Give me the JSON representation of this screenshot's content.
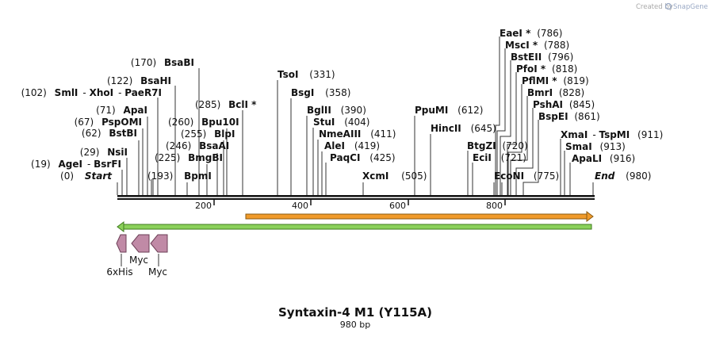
{
  "header": {
    "credit_text": "Created by",
    "credit_brand": "SnapGene"
  },
  "map": {
    "title": "Syntaxin-4 M1 (Y115A)",
    "subtitle": "980 bp",
    "length": 980,
    "ticks": [
      "200",
      "400",
      "600",
      "800"
    ]
  },
  "enzymes": [
    {
      "label": "EaeI *",
      "pos": "(786)"
    },
    {
      "label": "MscI *",
      "pos": "(788)"
    },
    {
      "label": "BstEII",
      "pos": "(796)"
    },
    {
      "label": "PfoI *",
      "pos": "(818)"
    },
    {
      "label": "PflMI *",
      "pos": "(819)"
    },
    {
      "label": "BmrI",
      "pos": "(828)"
    },
    {
      "label": "PshAI",
      "pos": "(845)"
    },
    {
      "label": "BspEI",
      "pos": "(861)"
    },
    {
      "label": "XmaI",
      "pos": "(911)",
      "alias": "TspMI"
    },
    {
      "label": "SmaI",
      "pos": "(913)"
    },
    {
      "label": "ApaLI",
      "pos": "(916)"
    },
    {
      "label": "End",
      "pos": "(980)"
    },
    {
      "label": "PpuMI",
      "pos": "(612)"
    },
    {
      "label": "HincII",
      "pos": "(645)"
    },
    {
      "label": "BtgZI",
      "pos": "(720)"
    },
    {
      "label": "EciI",
      "pos": "(721)"
    },
    {
      "label": "EcoNI",
      "pos": "(775)"
    },
    {
      "label": "TsoI",
      "pos": "(331)"
    },
    {
      "label": "BsgI",
      "pos": "(358)"
    },
    {
      "label": "BglII",
      "pos": "(390)"
    },
    {
      "label": "StuI",
      "pos": "(404)"
    },
    {
      "label": "NmeAIII",
      "pos": "(411)"
    },
    {
      "label": "AleI",
      "pos": "(419)"
    },
    {
      "label": "PaqCI",
      "pos": "(425)"
    },
    {
      "label": "XcmI",
      "pos": "(505)"
    },
    {
      "label": "BsaBI",
      "pos": "(170)"
    },
    {
      "label": "BsaHI",
      "pos": "(122)"
    },
    {
      "label": "SmlI",
      "pos": "(102)",
      "alias": "XhoI",
      "alias2": "PaeR7I"
    },
    {
      "label": "BclI *",
      "pos": "(285)"
    },
    {
      "label": "ApaI",
      "pos": "(71)"
    },
    {
      "label": "PspOMI",
      "pos": "(67)"
    },
    {
      "label": "Bpu10I",
      "pos": "(260)"
    },
    {
      "label": "BstBI",
      "pos": "(62)"
    },
    {
      "label": "BlpI",
      "pos": "(255)"
    },
    {
      "label": "BsaAI",
      "pos": "(246)"
    },
    {
      "label": "NsiI",
      "pos": "(29)"
    },
    {
      "label": "BmgBI",
      "pos": "(225)"
    },
    {
      "label": "AgeI",
      "pos": "(19)",
      "alias": "BsrFI"
    },
    {
      "label": "Start",
      "pos": "(0)"
    },
    {
      "label": "BpmI",
      "pos": "(193)"
    }
  ],
  "features": [
    {
      "label": "6xHis"
    },
    {
      "label": "Myc"
    },
    {
      "label": "Myc"
    }
  ],
  "colors": {
    "orf_orange": "#f09a2a",
    "orf_green": "#8bd15a",
    "tag_pink": "#c08aa6",
    "backbone": "#111111",
    "credit_brand": "#9aa9c5"
  }
}
